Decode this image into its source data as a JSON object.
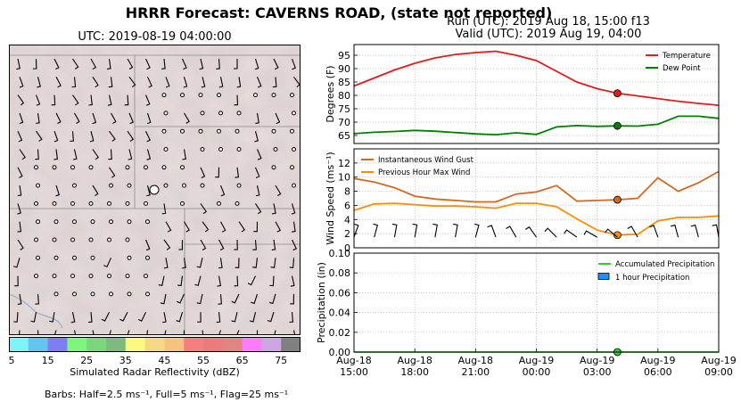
{
  "header": {
    "title": "HRRR Forecast: CAVERNS ROAD, (state not reported)",
    "run_line": "Run (UTC): 2019 Aug 18, 15:00 f13",
    "valid_line": "Valid (UTC): 2019 Aug 19, 04:00"
  },
  "map": {
    "utc_label": "UTC: 2019-08-19 04:00:00",
    "colorbar_title": "Simulated Radar Reflectivity (dBZ)",
    "colorbar_ticks": [
      "5",
      "15",
      "25",
      "35",
      "45",
      "55",
      "65",
      "75"
    ],
    "colorbar_colors": [
      "#7df4f6",
      "#63c6f1",
      "#7d7df4",
      "#7cf77c",
      "#79d879",
      "#7cbb7c",
      "#f9f97e",
      "#f5d982",
      "#f5c37e",
      "#f57f7f",
      "#ec7c7c",
      "#e08484",
      "#fc7cfc",
      "#cfa4e3",
      "#808080"
    ],
    "barbs_note": "Barbs: Half=2.5 ms⁻¹, Full=5 ms⁻¹, Flag=25 ms⁻¹"
  },
  "chart_data": [
    {
      "type": "line",
      "x": [
        "2019-08-18 15:00",
        "2019-08-18 16:00",
        "2019-08-18 17:00",
        "2019-08-18 18:00",
        "2019-08-18 19:00",
        "2019-08-18 20:00",
        "2019-08-18 21:00",
        "2019-08-18 22:00",
        "2019-08-18 23:00",
        "2019-08-19 00:00",
        "2019-08-19 01:00",
        "2019-08-19 02:00",
        "2019-08-19 03:00",
        "2019-08-19 04:00",
        "2019-08-19 05:00",
        "2019-08-19 06:00",
        "2019-08-19 07:00",
        "2019-08-19 08:00",
        "2019-08-19 09:00"
      ],
      "series": [
        {
          "name": "Temperature",
          "color": "#e41a1c",
          "values": [
            83.5,
            86.5,
            89.5,
            92,
            94,
            95.3,
            96,
            96.5,
            95,
            93,
            89,
            85,
            82.5,
            80.8,
            79.8,
            78.8,
            77.8,
            77,
            76.3
          ]
        },
        {
          "name": "Dew Point",
          "color": "#008000",
          "values": [
            65.7,
            66.2,
            66.5,
            66.9,
            66.6,
            66.1,
            65.6,
            65.3,
            66,
            65.4,
            68.2,
            68.7,
            68.4,
            68.6,
            68.5,
            69.2,
            72.2,
            72.2,
            71.4
          ]
        }
      ],
      "current_x": "2019-08-19 04:00",
      "ylabel": "Degrees (F)",
      "ylim": [
        62,
        99
      ],
      "yticks": [
        65,
        70,
        75,
        80,
        85,
        90,
        95
      ],
      "grid": true,
      "legend": "top-right"
    },
    {
      "type": "line",
      "x": [
        "2019-08-18 15:00",
        "2019-08-18 16:00",
        "2019-08-18 17:00",
        "2019-08-18 18:00",
        "2019-08-18 19:00",
        "2019-08-18 20:00",
        "2019-08-18 21:00",
        "2019-08-18 22:00",
        "2019-08-18 23:00",
        "2019-08-19 00:00",
        "2019-08-19 01:00",
        "2019-08-19 02:00",
        "2019-08-19 03:00",
        "2019-08-19 04:00",
        "2019-08-19 05:00",
        "2019-08-19 06:00",
        "2019-08-19 07:00",
        "2019-08-19 08:00",
        "2019-08-19 09:00"
      ],
      "series": [
        {
          "name": "Instantaneous Wind Gust",
          "color": "#d2691e",
          "values": [
            9.8,
            9.3,
            8.5,
            7.3,
            6.9,
            6.7,
            6.5,
            6.5,
            7.6,
            7.9,
            8.8,
            6.6,
            6.7,
            6.8,
            7.0,
            9.9,
            8.0,
            9.2,
            10.8
          ]
        },
        {
          "name": "Previous Hour Max Wind",
          "color": "#ff8c00",
          "values": [
            5.3,
            6.2,
            6.3,
            6.1,
            5.9,
            5.9,
            5.8,
            5.6,
            6.3,
            6.3,
            5.8,
            4.1,
            2.5,
            1.8,
            1.9,
            3.8,
            4.3,
            4.3,
            4.5
          ]
        }
      ],
      "current_x": "2019-08-19 04:00",
      "ylabel": "Wind Speed (ms⁻¹)",
      "ylim": [
        0,
        14
      ],
      "yticks": [
        0,
        2,
        4,
        6,
        8,
        10,
        12
      ],
      "grid": true,
      "legend": "top-left"
    },
    {
      "type": "bar",
      "x": [
        "2019-08-18 15:00",
        "2019-08-18 16:00",
        "2019-08-18 17:00",
        "2019-08-18 18:00",
        "2019-08-18 19:00",
        "2019-08-18 20:00",
        "2019-08-18 21:00",
        "2019-08-18 22:00",
        "2019-08-18 23:00",
        "2019-08-19 00:00",
        "2019-08-19 01:00",
        "2019-08-19 02:00",
        "2019-08-19 03:00",
        "2019-08-19 04:00",
        "2019-08-19 05:00",
        "2019-08-19 06:00",
        "2019-08-19 07:00",
        "2019-08-19 08:00",
        "2019-08-19 09:00"
      ],
      "series": [
        {
          "name": "Accumulated Precipitation",
          "color": "#32cd32",
          "values": [
            0,
            0,
            0,
            0,
            0,
            0,
            0,
            0,
            0,
            0,
            0,
            0,
            0,
            0,
            0,
            0,
            0,
            0,
            0
          ]
        },
        {
          "name": "1 hour Precipitation",
          "color": "#1e90ff",
          "values": [
            0,
            0,
            0,
            0,
            0,
            0,
            0,
            0,
            0,
            0,
            0,
            0,
            0,
            0,
            0,
            0,
            0,
            0,
            0
          ]
        }
      ],
      "current_x": "2019-08-19 04:00",
      "ylabel": "Precipitation (in)",
      "ylim": [
        0,
        0.1
      ],
      "yticks": [
        "0.00",
        "0.02",
        "0.04",
        "0.06",
        "0.08",
        "0.10"
      ],
      "xtick_labels": [
        [
          "Aug-18",
          "15:00"
        ],
        [
          "Aug-18",
          "18:00"
        ],
        [
          "Aug-18",
          "21:00"
        ],
        [
          "Aug-19",
          "00:00"
        ],
        [
          "Aug-19",
          "03:00"
        ],
        [
          "Aug-19",
          "06:00"
        ],
        [
          "Aug-19",
          "09:00"
        ]
      ],
      "grid": true,
      "legend": "top-right"
    }
  ]
}
